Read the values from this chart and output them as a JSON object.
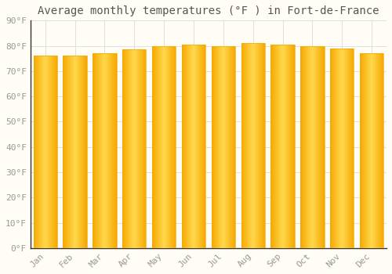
{
  "title": "Average monthly temperatures (°F ) in Fort-de-France",
  "months": [
    "Jan",
    "Feb",
    "Mar",
    "Apr",
    "May",
    "Jun",
    "Jul",
    "Aug",
    "Sep",
    "Oct",
    "Nov",
    "Dec"
  ],
  "values": [
    76,
    76,
    77,
    78.5,
    80,
    80.5,
    80,
    81,
    80.5,
    80,
    79,
    77
  ],
  "bar_color_center": "#FFD84C",
  "bar_color_edge": "#F5A800",
  "background_color": "#FFFDF5",
  "grid_color": "#E0E0E0",
  "ylim": [
    0,
    90
  ],
  "yticks": [
    0,
    10,
    20,
    30,
    40,
    50,
    60,
    70,
    80,
    90
  ],
  "ytick_labels": [
    "0°F",
    "10°F",
    "20°F",
    "30°F",
    "40°F",
    "50°F",
    "60°F",
    "70°F",
    "80°F",
    "90°F"
  ],
  "title_fontsize": 10,
  "tick_fontsize": 8,
  "font_family": "monospace",
  "bar_width": 0.8,
  "spine_color": "#333333"
}
